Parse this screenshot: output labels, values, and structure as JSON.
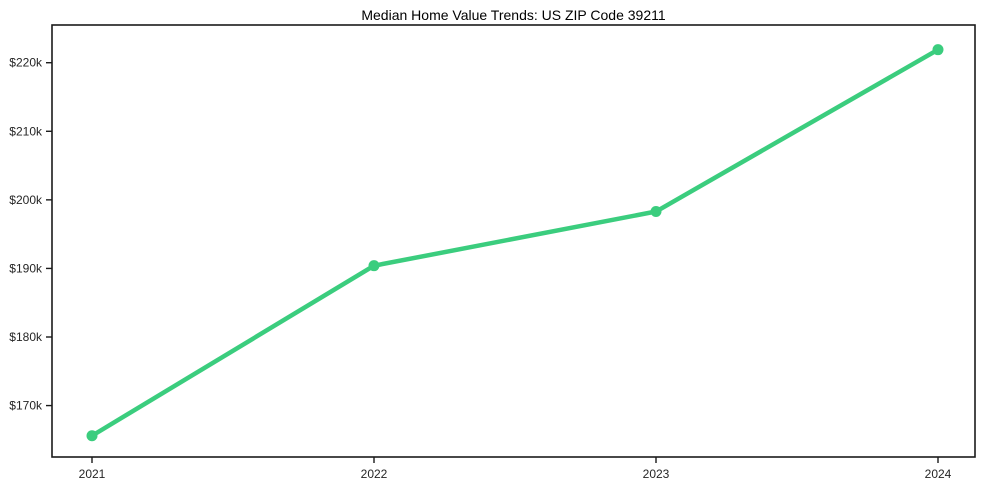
{
  "chart_data": {
    "type": "line",
    "title": "Median Home Value Trends: US ZIP Code 39211",
    "categories": [
      "2021",
      "2022",
      "2023",
      "2024"
    ],
    "series": [
      {
        "name": "Median Home Value",
        "values": [
          165600,
          190400,
          198300,
          221900
        ]
      }
    ],
    "xlabel": "",
    "ylabel": "",
    "ylim": [
      162500,
      225500
    ],
    "y_ticks": [
      {
        "value": 170000,
        "label": "$170k"
      },
      {
        "value": 180000,
        "label": "$180k"
      },
      {
        "value": 190000,
        "label": "$190k"
      },
      {
        "value": 200000,
        "label": "$200k"
      },
      {
        "value": 210000,
        "label": "$210k"
      },
      {
        "value": 220000,
        "label": "$220k"
      }
    ],
    "grid": false,
    "legend_position": "none",
    "marker": "circle",
    "colors": {
      "line": "#3bcd7e",
      "axis": "#1a1a1a",
      "tick_label": "#262626",
      "title": "#000000",
      "background": "#ffffff"
    }
  }
}
